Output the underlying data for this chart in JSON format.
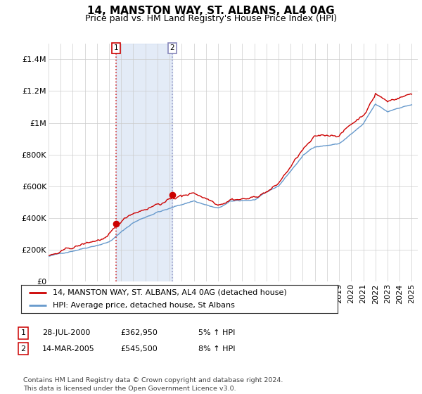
{
  "title": "14, MANSTON WAY, ST. ALBANS, AL4 0AG",
  "subtitle": "Price paid vs. HM Land Registry's House Price Index (HPI)",
  "ylim": [
    0,
    1500000
  ],
  "yticks": [
    0,
    200000,
    400000,
    600000,
    800000,
    1000000,
    1200000,
    1400000
  ],
  "ytick_labels": [
    "£0",
    "£200K",
    "£400K",
    "£600K",
    "£800K",
    "£1M",
    "£1.2M",
    "£1.4M"
  ],
  "t1_year": 2000.58,
  "t1_price": 362950,
  "t2_year": 2005.21,
  "t2_price": 545500,
  "line_color_property": "#cc0000",
  "line_color_hpi": "#6699cc",
  "shade_color": "#c8d8f0",
  "legend_label_property": "14, MANSTON WAY, ST. ALBANS, AL4 0AG (detached house)",
  "legend_label_hpi": "HPI: Average price, detached house, St Albans",
  "table_rows": [
    {
      "label": "1",
      "date": "28-JUL-2000",
      "price": "£362,950",
      "change": "5% ↑ HPI"
    },
    {
      "label": "2",
      "date": "14-MAR-2005",
      "price": "£545,500",
      "change": "8% ↑ HPI"
    }
  ],
  "footer": "Contains HM Land Registry data © Crown copyright and database right 2024.\nThis data is licensed under the Open Government Licence v3.0.",
  "background_color": "#ffffff",
  "grid_color": "#cccccc",
  "title_fontsize": 11,
  "subtitle_fontsize": 9,
  "tick_fontsize": 8
}
